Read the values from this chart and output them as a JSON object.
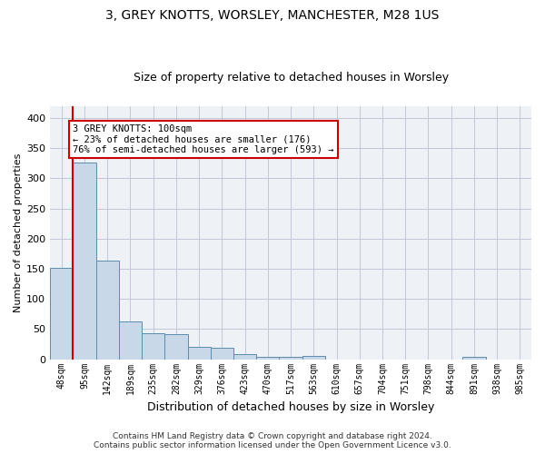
{
  "title_line1": "3, GREY KNOTTS, WORSLEY, MANCHESTER, M28 1US",
  "title_line2": "Size of property relative to detached houses in Worsley",
  "xlabel": "Distribution of detached houses by size in Worsley",
  "ylabel": "Number of detached properties",
  "footer_line1": "Contains HM Land Registry data © Crown copyright and database right 2024.",
  "footer_line2": "Contains public sector information licensed under the Open Government Licence v3.0.",
  "annotation_title": "3 GREY KNOTTS: 100sqm",
  "annotation_line1": "← 23% of detached houses are smaller (176)",
  "annotation_line2": "76% of semi-detached houses are larger (593) →",
  "bar_color": "#c8d8e8",
  "bar_edge_color": "#5b8db0",
  "highlight_line_color": "#cc0000",
  "grid_color": "#c0c8d8",
  "bg_color": "#eef2f7",
  "categories": [
    "48sqm",
    "95sqm",
    "142sqm",
    "189sqm",
    "235sqm",
    "282sqm",
    "329sqm",
    "376sqm",
    "423sqm",
    "470sqm",
    "517sqm",
    "563sqm",
    "610sqm",
    "657sqm",
    "704sqm",
    "751sqm",
    "798sqm",
    "844sqm",
    "891sqm",
    "938sqm",
    "985sqm"
  ],
  "values": [
    151,
    326,
    163,
    63,
    43,
    42,
    20,
    19,
    9,
    4,
    4,
    5,
    0,
    0,
    0,
    0,
    0,
    0,
    4,
    0,
    0
  ],
  "ylim": [
    0,
    420
  ],
  "yticks": [
    0,
    50,
    100,
    150,
    200,
    250,
    300,
    350,
    400
  ],
  "highlight_bar_index": 1,
  "title_fontsize": 10,
  "subtitle_fontsize": 9,
  "ylabel_fontsize": 8,
  "xlabel_fontsize": 9,
  "tick_fontsize": 7,
  "footer_fontsize": 6.5
}
